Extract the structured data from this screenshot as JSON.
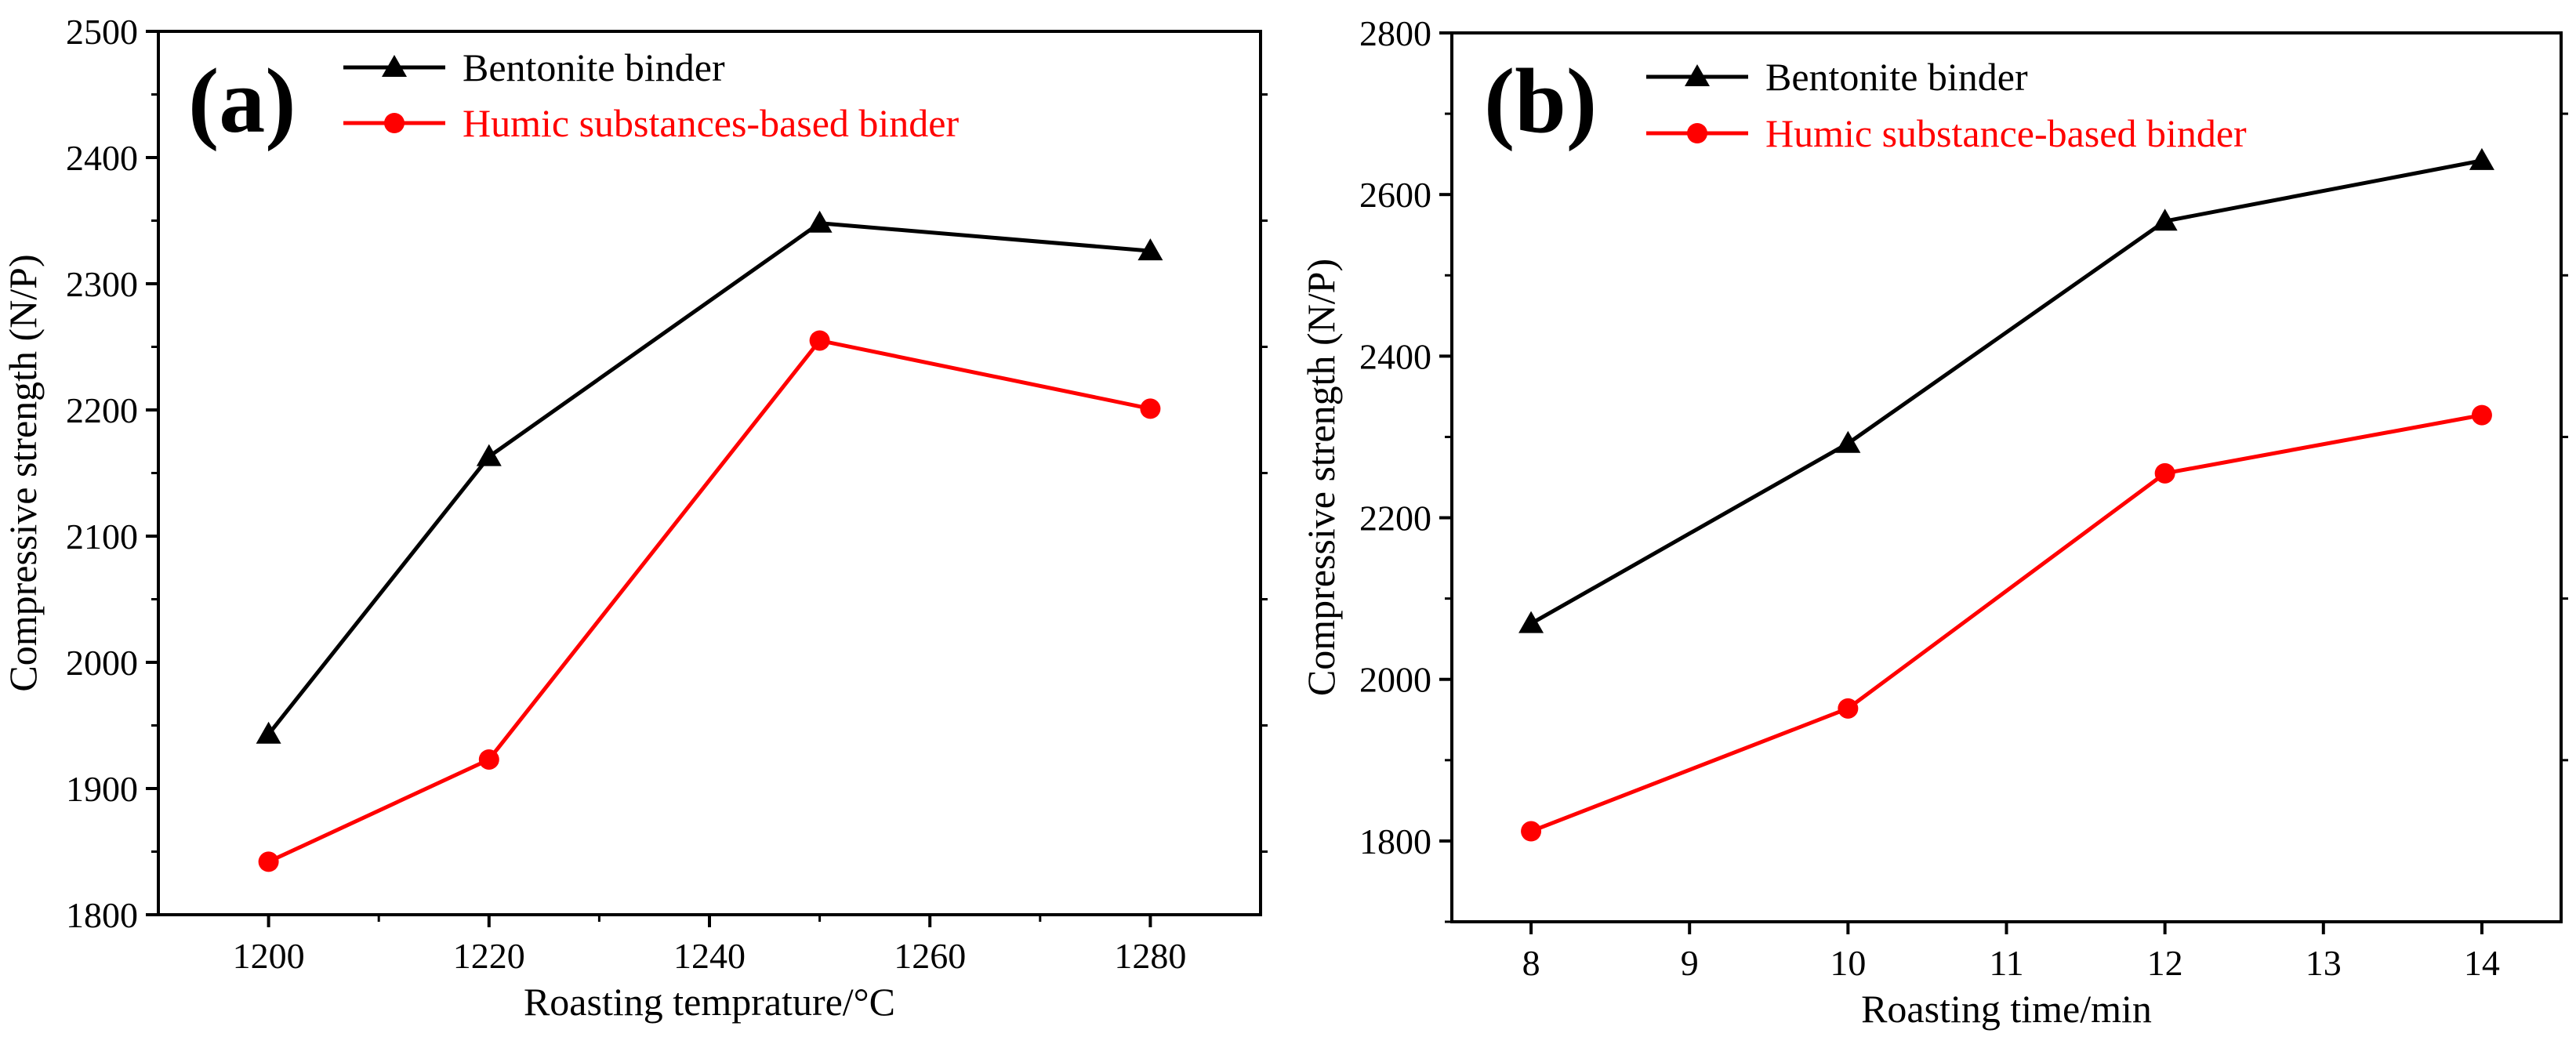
{
  "chart_data": [
    {
      "panel_label": "(a)",
      "type": "line",
      "title": "",
      "xlabel": "Roasting temprature/°C",
      "ylabel": "Compressive strength (N/P)",
      "xlim": [
        1190,
        1290
      ],
      "ylim": [
        1800,
        2500
      ],
      "xticks": [
        1200,
        1220,
        1240,
        1260,
        1280
      ],
      "yticks": [
        1800,
        1900,
        2000,
        2100,
        2200,
        2300,
        2400,
        2500
      ],
      "x": [
        1200,
        1220,
        1250,
        1280
      ],
      "grid": false,
      "legend_position": "top-left",
      "series": [
        {
          "name": "Bentonite binder",
          "color": "#000000",
          "marker": "triangle",
          "values": [
            1943,
            2163,
            2348,
            2326
          ]
        },
        {
          "name": "Humic substances-based binder",
          "color": "#ff0000",
          "marker": "circle",
          "values": [
            1842,
            1923,
            2255,
            2201
          ]
        }
      ]
    },
    {
      "panel_label": "(b)",
      "type": "line",
      "title": "",
      "xlabel": "Roasting time/min",
      "ylabel": "Compressive strength (N/P)",
      "xlim": [
        7.5,
        14.5
      ],
      "ylim": [
        1700,
        2800
      ],
      "xticks": [
        8,
        9,
        10,
        11,
        12,
        13,
        14
      ],
      "yticks": [
        1800,
        2000,
        2200,
        2400,
        2600,
        2800
      ],
      "x": [
        8,
        10,
        12,
        14
      ],
      "grid": false,
      "legend_position": "top-left",
      "series": [
        {
          "name": "Bentonite binder",
          "color": "#000000",
          "marker": "triangle",
          "values": [
            2069,
            2292,
            2567,
            2642
          ]
        },
        {
          "name": "Humic substance-based binder",
          "color": "#ff0000",
          "marker": "circle",
          "values": [
            1812,
            1964,
            2255,
            2327
          ]
        }
      ]
    }
  ]
}
